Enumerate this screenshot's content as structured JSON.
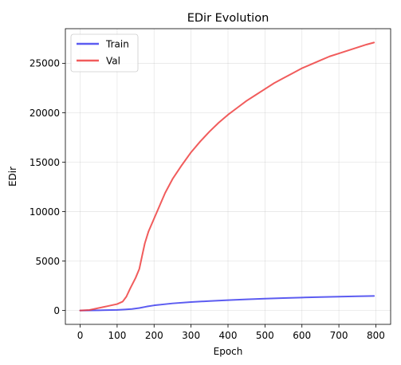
{
  "chart_data": {
    "type": "line",
    "title": "EDir Evolution",
    "xlabel": "Epoch",
    "ylabel": "EDir",
    "xlim": [
      -40,
      840
    ],
    "ylim": [
      -1400,
      28500
    ],
    "x_ticks": [
      0,
      100,
      200,
      300,
      400,
      500,
      600,
      700,
      800
    ],
    "y_ticks": [
      0,
      5000,
      10000,
      15000,
      20000,
      25000
    ],
    "grid": true,
    "legend": {
      "position": "top-left"
    },
    "series": [
      {
        "name": "Train",
        "color": "#3333ee",
        "x": [
          0,
          50,
          100,
          120,
          140,
          160,
          180,
          200,
          250,
          300,
          350,
          400,
          450,
          500,
          550,
          600,
          650,
          700,
          750,
          795
        ],
        "y": [
          0,
          20,
          60,
          100,
          150,
          250,
          400,
          520,
          720,
          860,
          960,
          1050,
          1130,
          1200,
          1260,
          1310,
          1360,
          1400,
          1440,
          1470
        ]
      },
      {
        "name": "Val",
        "color": "#ee3333",
        "x": [
          0,
          25,
          50,
          75,
          100,
          115,
          125,
          135,
          150,
          160,
          168,
          175,
          185,
          200,
          215,
          230,
          250,
          275,
          300,
          325,
          350,
          375,
          400,
          425,
          450,
          475,
          500,
          525,
          550,
          575,
          600,
          625,
          650,
          675,
          700,
          725,
          750,
          775,
          795
        ],
        "y": [
          0,
          50,
          250,
          450,
          650,
          900,
          1400,
          2200,
          3300,
          4200,
          5600,
          6800,
          8000,
          9300,
          10600,
          11900,
          13300,
          14700,
          16000,
          17100,
          18100,
          19000,
          19800,
          20500,
          21200,
          21800,
          22400,
          23000,
          23500,
          24000,
          24500,
          24900,
          25300,
          25700,
          26000,
          26300,
          26600,
          26900,
          27100
        ]
      }
    ]
  }
}
